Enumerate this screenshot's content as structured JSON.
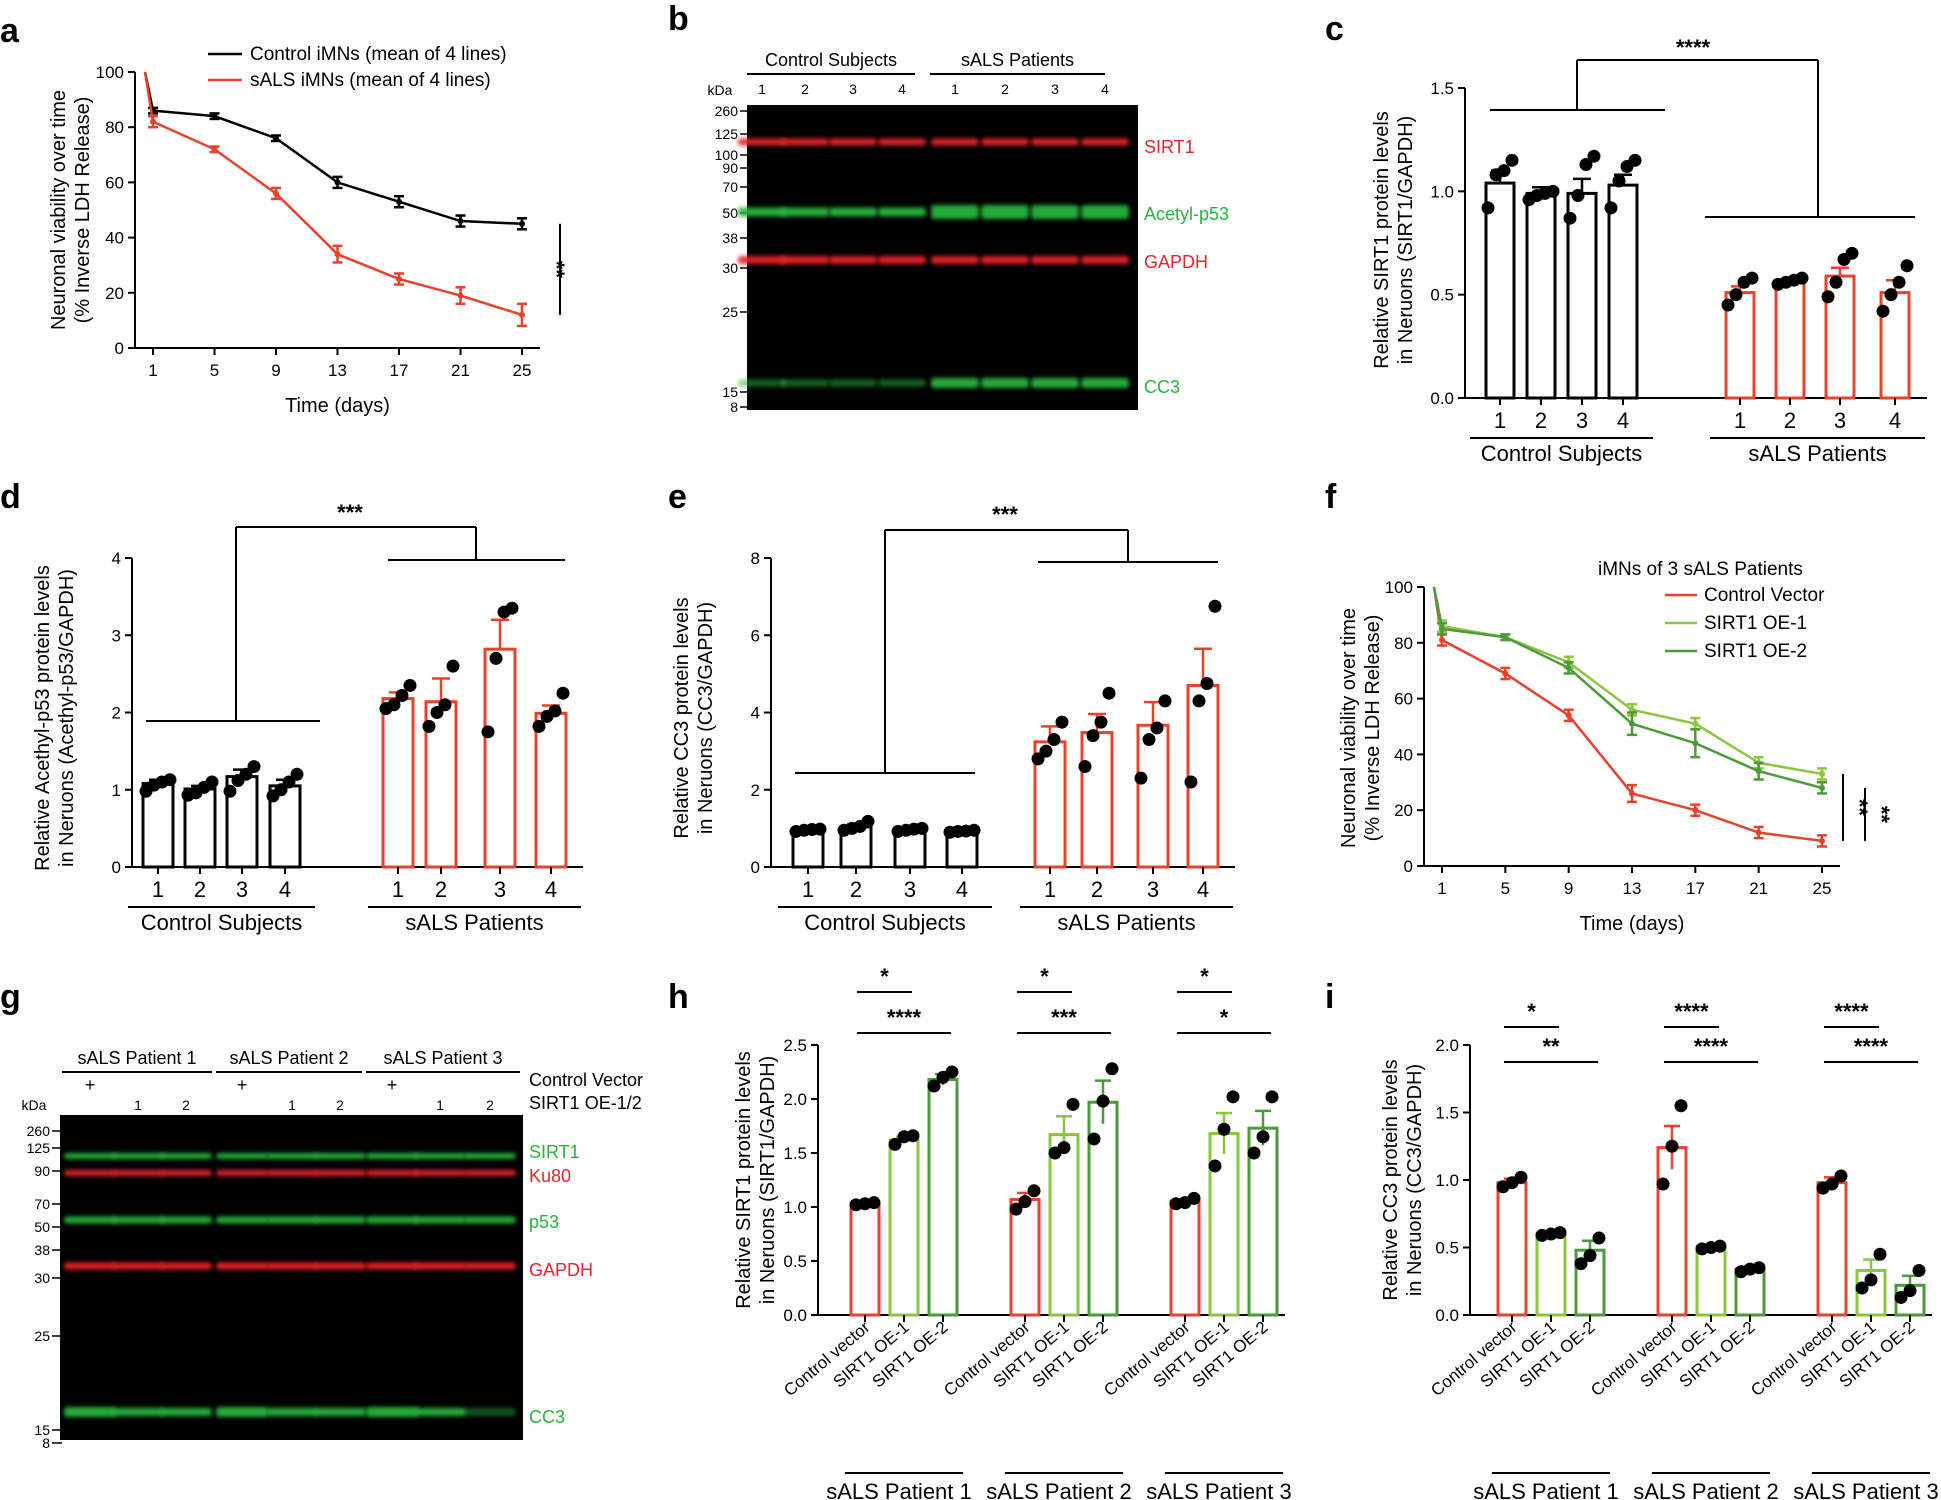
{
  "colors": {
    "control": "#000000",
    "sals": "#e8412c",
    "oe1": "#8cc63f",
    "oe2": "#4b9b3a",
    "band_red": "#e8242c",
    "band_green": "#28b43c"
  },
  "panels": {
    "a": "a",
    "b": "b",
    "c": "c",
    "d": "d",
    "e": "e",
    "f": "f",
    "g": "g",
    "h": "h",
    "i": "i"
  },
  "chart_data": [
    {
      "id": "a",
      "type": "line",
      "x": [
        1,
        5,
        9,
        13,
        17,
        21,
        25
      ],
      "series": [
        {
          "name": "Control iMNs (mean of 4 lines)",
          "values": [
            86,
            84,
            76,
            60,
            53,
            46,
            45
          ],
          "errors": [
            1,
            1,
            1,
            2,
            2,
            2,
            2
          ]
        },
        {
          "name": "sALS iMNs (mean of 4 lines)",
          "values": [
            82,
            72,
            56,
            34,
            25,
            19,
            12
          ],
          "errors": [
            2,
            1,
            2,
            3,
            2,
            3,
            4
          ]
        }
      ],
      "y_start": 100,
      "xlabel": "Time (days)",
      "ylabel": [
        "Neuronal viability over time",
        "(% Inverse LDH Release)"
      ],
      "ylim": [
        0,
        100
      ],
      "yticks": [
        "0",
        "20",
        "40",
        "60",
        "80",
        "100"
      ],
      "xticks": [
        "1",
        "5",
        "9",
        "13",
        "17",
        "21",
        "25"
      ],
      "significance": "**"
    },
    {
      "id": "c",
      "type": "bar",
      "groups": [
        {
          "name": "Control Subjects",
          "categories": [
            "1",
            "2",
            "3",
            "4"
          ],
          "values": [
            1.04,
            0.99,
            0.99,
            1.03
          ],
          "errors": [
            0.06,
            0.03,
            0.07,
            0.05
          ],
          "points": [
            [
              0.92,
              1.08,
              1.1,
              1.15
            ],
            [
              0.96,
              0.98,
              0.99,
              1.0
            ],
            [
              0.87,
              0.98,
              1.13,
              1.17
            ],
            [
              0.92,
              1.05,
              1.12,
              1.15
            ]
          ]
        },
        {
          "name": "sALS Patients",
          "categories": [
            "1",
            "2",
            "3",
            "4"
          ],
          "values": [
            0.51,
            0.56,
            0.59,
            0.51
          ],
          "errors": [
            0.03,
            0.01,
            0.04,
            0.06
          ],
          "points": [
            [
              0.45,
              0.5,
              0.56,
              0.58
            ],
            [
              0.55,
              0.56,
              0.57,
              0.58
            ],
            [
              0.49,
              0.56,
              0.67,
              0.7
            ],
            [
              0.42,
              0.5,
              0.56,
              0.64
            ]
          ]
        }
      ],
      "ylabel": [
        "Relative SIRT1 protein levels",
        "in Neruons (SIRT1/GAPDH)"
      ],
      "ylim": [
        0,
        1.5
      ],
      "yticks": [
        "0.0",
        "0.5",
        "1.0",
        "1.5"
      ],
      "significance": "****"
    },
    {
      "id": "d",
      "type": "bar",
      "groups": [
        {
          "name": "Control Subjects",
          "categories": [
            "1",
            "2",
            "3",
            "4"
          ],
          "values": [
            1.08,
            1.01,
            1.17,
            1.05
          ],
          "errors": [
            0.05,
            0.04,
            0.09,
            0.08
          ],
          "points": [
            [
              0.98,
              1.06,
              1.1,
              1.13
            ],
            [
              0.93,
              0.96,
              1.03,
              1.1
            ],
            [
              0.98,
              1.12,
              1.2,
              1.3
            ],
            [
              0.92,
              1.0,
              1.1,
              1.2
            ]
          ]
        },
        {
          "name": "sALS Patients",
          "categories": [
            "1",
            "2",
            "3",
            "4"
          ],
          "values": [
            2.18,
            2.14,
            2.82,
            1.99
          ],
          "errors": [
            0.08,
            0.3,
            0.38,
            0.1
          ],
          "points": [
            [
              2.05,
              2.1,
              2.22,
              2.35
            ],
            [
              1.82,
              2.0,
              2.1,
              2.6
            ],
            [
              1.75,
              2.7,
              3.3,
              3.35
            ],
            [
              1.82,
              1.95,
              2.02,
              2.25
            ]
          ]
        }
      ],
      "ylabel": [
        "Relative Acethyl-p53 protein levels",
        "in Neruons (Acethyl-p53/GAPDH)"
      ],
      "ylim": [
        0,
        4
      ],
      "yticks": [
        "0",
        "1",
        "2",
        "3",
        "4"
      ],
      "significance": "***"
    },
    {
      "id": "e",
      "type": "bar",
      "groups": [
        {
          "name": "Control Subjects",
          "categories": [
            "1",
            "2",
            "3",
            "4"
          ],
          "values": [
            0.95,
            1.04,
            0.97,
            0.93
          ],
          "errors": [
            0.03,
            0.06,
            0.03,
            0.02
          ],
          "points": [
            [
              0.92,
              0.95,
              0.97,
              0.98
            ],
            [
              0.95,
              1.0,
              1.05,
              1.18
            ],
            [
              0.92,
              0.95,
              0.98,
              1.0
            ],
            [
              0.9,
              0.92,
              0.93,
              0.95
            ]
          ]
        },
        {
          "name": "sALS Patients",
          "categories": [
            "1",
            "2",
            "3",
            "4"
          ],
          "values": [
            3.24,
            3.48,
            3.67,
            4.7
          ],
          "errors": [
            0.4,
            0.48,
            0.6,
            0.95
          ],
          "points": [
            [
              2.8,
              3.0,
              3.3,
              3.75
            ],
            [
              2.6,
              3.4,
              3.75,
              4.5
            ],
            [
              2.3,
              3.3,
              3.6,
              4.3
            ],
            [
              2.2,
              4.3,
              4.75,
              6.75
            ]
          ]
        }
      ],
      "ylabel": [
        "Relative CC3 protein levels",
        "in Neruons (CC3/GAPDH)"
      ],
      "ylim": [
        0,
        8
      ],
      "yticks": [
        "0",
        "2",
        "4",
        "6",
        "8"
      ],
      "significance": "***"
    },
    {
      "id": "f",
      "type": "line",
      "legend_title": "iMNs of 3 sALS Patients",
      "x": [
        1,
        5,
        9,
        13,
        17,
        21,
        25
      ],
      "series": [
        {
          "name": "Control Vector",
          "values": [
            81,
            69,
            54,
            26,
            20,
            12,
            9
          ],
          "errors": [
            2,
            2,
            2,
            3,
            2,
            2,
            2
          ]
        },
        {
          "name": "SIRT1 OE-1",
          "values": [
            86,
            82,
            73,
            56,
            51,
            37,
            33
          ],
          "errors": [
            2,
            1,
            2,
            2,
            2,
            2,
            2
          ]
        },
        {
          "name": "SIRT1 OE-2",
          "values": [
            85,
            82,
            71,
            51,
            44,
            34,
            28
          ],
          "errors": [
            2,
            1,
            2,
            4,
            5,
            3,
            2
          ]
        }
      ],
      "y_start": 100,
      "xlabel": "Time (days)",
      "ylabel": [
        "Neuronal viability over time",
        "(% Inverse LDH Release)"
      ],
      "ylim": [
        0,
        100
      ],
      "yticks": [
        "0",
        "20",
        "40",
        "60",
        "80",
        "100"
      ],
      "xticks": [
        "1",
        "5",
        "9",
        "13",
        "17",
        "21",
        "25"
      ],
      "significance": [
        "**",
        "**"
      ]
    },
    {
      "id": "h",
      "type": "bar",
      "categories": [
        "Control vector",
        "SIRT1 OE-1",
        "SIRT1 OE-2"
      ],
      "groups": [
        {
          "name": "sALS Patient 1",
          "values": [
            1.03,
            1.62,
            2.18
          ],
          "errors": [
            0.01,
            0.03,
            0.05
          ],
          "points": [
            [
              1.02,
              1.03,
              1.04
            ],
            [
              1.58,
              1.65,
              1.66
            ],
            [
              2.12,
              2.2,
              2.25
            ]
          ],
          "sig_top": "*",
          "sig_bottom": "****"
        },
        {
          "name": "sALS Patient 2",
          "values": [
            1.07,
            1.67,
            1.97
          ],
          "errors": [
            0.06,
            0.17,
            0.2
          ],
          "points": [
            [
              0.98,
              1.05,
              1.15
            ],
            [
              1.5,
              1.55,
              1.95
            ],
            [
              1.63,
              1.98,
              2.28
            ]
          ],
          "sig_top": "*",
          "sig_bottom": "***"
        },
        {
          "name": "sALS Patient 3",
          "values": [
            1.05,
            1.68,
            1.73
          ],
          "errors": [
            0.02,
            0.19,
            0.16
          ],
          "points": [
            [
              1.03,
              1.04,
              1.08
            ],
            [
              1.38,
              1.72,
              2.02
            ],
            [
              1.5,
              1.65,
              2.02
            ]
          ],
          "sig_top": "*",
          "sig_bottom": "*"
        }
      ],
      "ylabel": [
        "Relative SIRT1 protein levels",
        "in Neruons (SIRT1/GAPDH)"
      ],
      "ylim": [
        0,
        2.5
      ],
      "yticks": [
        "0.0",
        "0.5",
        "1.0",
        "1.5",
        "2.0",
        "2.5"
      ]
    },
    {
      "id": "i",
      "type": "bar",
      "categories": [
        "Control vector",
        "SIRT1 OE-1",
        "SIRT1 OE-2"
      ],
      "groups": [
        {
          "name": "sALS Patient 1",
          "values": [
            0.98,
            0.6,
            0.48
          ],
          "errors": [
            0.03,
            0.01,
            0.07
          ],
          "points": [
            [
              0.95,
              0.98,
              1.02
            ],
            [
              0.59,
              0.6,
              0.61
            ],
            [
              0.38,
              0.44,
              0.57
            ]
          ],
          "sig_top": "*",
          "sig_bottom": "**"
        },
        {
          "name": "sALS Patient 2",
          "values": [
            1.24,
            0.5,
            0.34
          ],
          "errors": [
            0.16,
            0.01,
            0.02
          ],
          "points": [
            [
              0.97,
              1.25,
              1.55
            ],
            [
              0.49,
              0.5,
              0.51
            ],
            [
              0.32,
              0.34,
              0.35
            ]
          ],
          "sig_top": "****",
          "sig_bottom": "****"
        },
        {
          "name": "sALS Patient 3",
          "values": [
            0.98,
            0.33,
            0.22
          ],
          "errors": [
            0.04,
            0.08,
            0.07
          ],
          "points": [
            [
              0.94,
              0.97,
              1.03
            ],
            [
              0.2,
              0.26,
              0.45
            ],
            [
              0.13,
              0.18,
              0.33
            ]
          ],
          "sig_top": "****",
          "sig_bottom": "****"
        }
      ],
      "ylabel": [
        "Relative CC3 protein levels",
        "in Neruons (CC3/GAPDH)"
      ],
      "ylim": [
        0,
        2.0
      ],
      "yticks": [
        "0.0",
        "0.5",
        "1.0",
        "1.5",
        "2.0"
      ]
    }
  ],
  "blot_b": {
    "groups": [
      "Control Subjects",
      "sALS Patients"
    ],
    "lanes": [
      "1",
      "2",
      "3",
      "4",
      "1",
      "2",
      "3",
      "4"
    ],
    "kda_label": "kDa",
    "markers": [
      "260",
      "125",
      "100",
      "90",
      "70",
      "50",
      "38",
      "30",
      "25",
      "15",
      "8"
    ],
    "bands": [
      {
        "name": "SIRT1",
        "color": "red"
      },
      {
        "name": "Acetyl-p53",
        "color": "green"
      },
      {
        "name": "GAPDH",
        "color": "red"
      },
      {
        "name": "CC3",
        "color": "green"
      }
    ]
  },
  "blot_g": {
    "groups": [
      "sALS Patient 1",
      "sALS Patient 2",
      "sALS Patient 3"
    ],
    "row1_label": "Control Vector",
    "row2_label": "SIRT1 OE-1/2",
    "plus": "+",
    "oe_marks": [
      "1",
      "2"
    ],
    "kda_label": "kDa",
    "markers": [
      "260",
      "125",
      "90",
      "70",
      "50",
      "38",
      "30",
      "25",
      "15",
      "8"
    ],
    "bands": [
      {
        "name": "SIRT1",
        "color": "green"
      },
      {
        "name": "Ku80",
        "color": "red"
      },
      {
        "name": "p53",
        "color": "green"
      },
      {
        "name": "GAPDH",
        "color": "red"
      },
      {
        "name": "CC3",
        "color": "green"
      }
    ]
  }
}
